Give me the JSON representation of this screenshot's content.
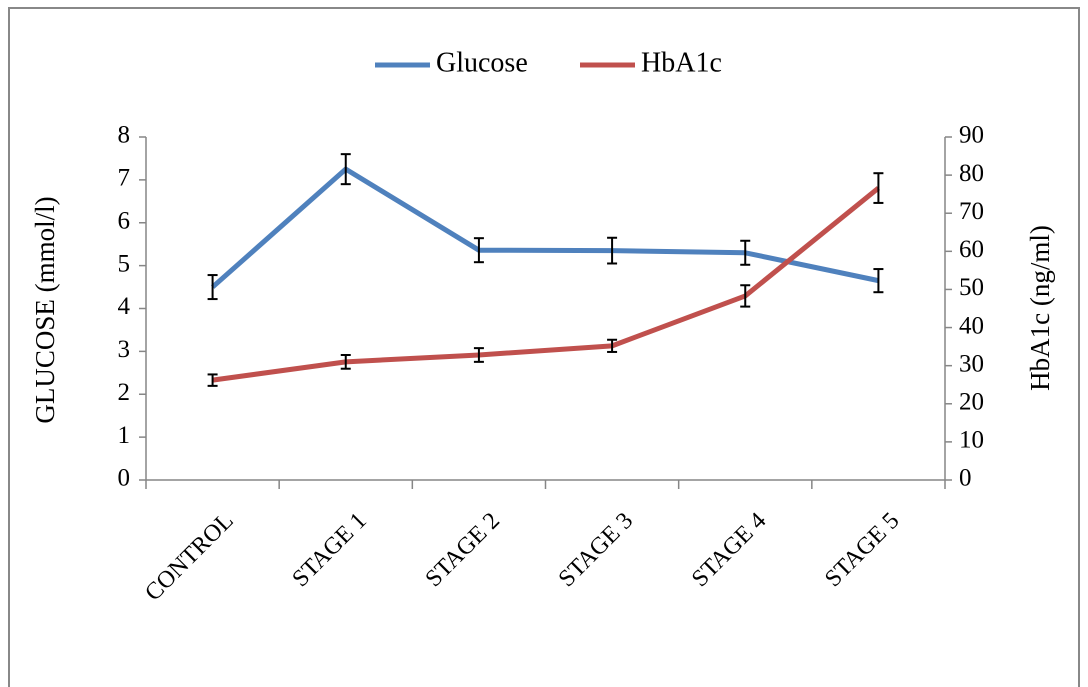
{
  "chart_data": {
    "type": "line",
    "categories": [
      "CONTROL",
      "STAGE 1",
      "STAGE 2",
      "STAGE 3",
      "STAGE 4",
      "STAGE 5"
    ],
    "series": [
      {
        "name": "Glucose",
        "color": "#4f81bd",
        "axis": "y",
        "values": [
          4.5,
          7.25,
          5.36,
          5.35,
          5.3,
          4.65
        ],
        "errors": [
          0.28,
          0.35,
          0.28,
          0.3,
          0.28,
          0.27
        ]
      },
      {
        "name": "HbA1c",
        "color": "#c0504d",
        "axis": "y2",
        "values": [
          26.2,
          31,
          32.8,
          35.2,
          48.3,
          76.6
        ],
        "errors": [
          1.5,
          1.8,
          1.8,
          1.6,
          2.8,
          3.9
        ]
      }
    ],
    "ylabel": "GLUCOSE (mmol/l)",
    "y2label": "HbA1c (ng/ml)",
    "ylim": [
      0,
      8
    ],
    "yticks": [
      0,
      1,
      2,
      3,
      4,
      5,
      6,
      7,
      8
    ],
    "y2lim": [
      0,
      90
    ],
    "y2ticks": [
      0,
      10,
      20,
      30,
      40,
      50,
      60,
      70,
      80,
      90
    ],
    "legend": "top",
    "grid": false
  }
}
